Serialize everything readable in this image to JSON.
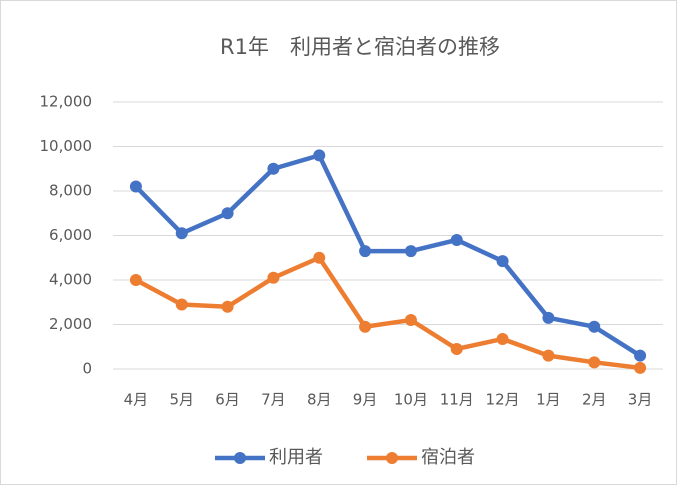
{
  "chart_data": {
    "type": "line",
    "title": "R1年　利用者と宿泊者の推移",
    "categories": [
      "4月",
      "5月",
      "6月",
      "7月",
      "8月",
      "9月",
      "10月",
      "11月",
      "12月",
      "1月",
      "2月",
      "3月"
    ],
    "series": [
      {
        "name": "利用者",
        "color": "#4472c4",
        "values": [
          8200,
          6100,
          7000,
          9000,
          9600,
          5300,
          5300,
          5800,
          4850,
          2300,
          1900,
          600
        ]
      },
      {
        "name": "宿泊者",
        "color": "#ed7d31",
        "values": [
          4000,
          2900,
          2800,
          4100,
          5000,
          1900,
          2200,
          900,
          1350,
          600,
          300,
          50
        ]
      }
    ],
    "ylim": [
      0,
      12000
    ],
    "yticks": [
      0,
      {
        "value": 2000,
        "label": "2,000"
      },
      {
        "value": 4000,
        "label": "4,000"
      },
      {
        "value": 6000,
        "label": "6,000"
      },
      {
        "value": 8000,
        "label": "8,000"
      },
      {
        "value": 10000,
        "label": "10,000"
      },
      {
        "value": 12000,
        "label": "12,000"
      }
    ],
    "grid": true,
    "legend": "bottom"
  }
}
